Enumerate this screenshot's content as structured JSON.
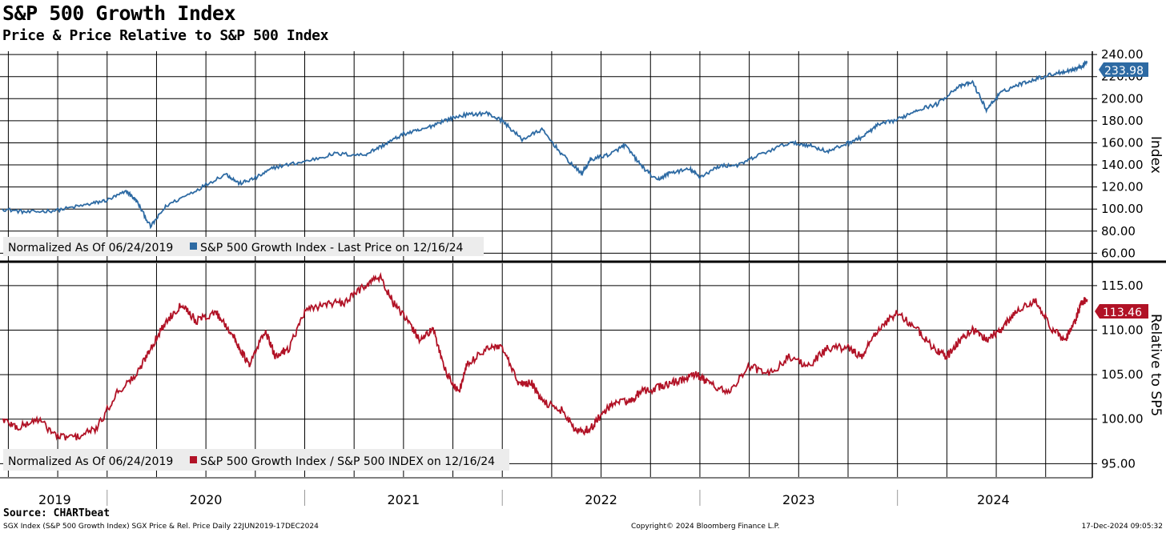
{
  "title": "S&P 500 Growth Index",
  "subtitle": "Price & Price Relative to S&P 500 Index",
  "source": "Source: CHARTbeat",
  "footer": {
    "left": "SGX Index (S&P 500 Growth Index) SGX Price & Rel. Price  Daily 22JUN2019-17DEC2024",
    "middle": "Copyright© 2024 Bloomberg Finance L.P.",
    "right": "17-Dec-2024 09:05:32"
  },
  "colors": {
    "price": "#2d6aa3",
    "relative": "#b11226",
    "grid": "#000000"
  },
  "chart_data": [
    {
      "type": "line",
      "name": "price-panel",
      "axis_label": "Index",
      "y_ticks": [
        "60.00",
        "80.00",
        "100.00",
        "120.00",
        "140.00",
        "160.00",
        "180.00",
        "200.00",
        "220.00",
        "240.00"
      ],
      "ylim": [
        53,
        243
      ],
      "x_range": [
        2019.47,
        2024.97
      ],
      "last_value_label": "233.98",
      "legend": {
        "normalized": "Normalized As Of 06/24/2019",
        "series": "S&P 500 Growth Index - Last Price on 12/16/24",
        "placement": "bottom-left"
      },
      "x": [
        2019.47,
        2019.6,
        2019.75,
        2019.9,
        2020.0,
        2020.1,
        2020.15,
        2020.22,
        2020.3,
        2020.45,
        2020.6,
        2020.67,
        2020.75,
        2020.85,
        2021.0,
        2021.15,
        2021.3,
        2021.4,
        2021.5,
        2021.6,
        2021.7,
        2021.8,
        2021.92,
        2022.0,
        2022.1,
        2022.2,
        2022.3,
        2022.4,
        2022.45,
        2022.55,
        2022.62,
        2022.7,
        2022.78,
        2022.85,
        2022.95,
        2023.0,
        2023.1,
        2023.2,
        2023.3,
        2023.45,
        2023.55,
        2023.65,
        2023.75,
        2023.82,
        2023.9,
        2024.0,
        2024.1,
        2024.2,
        2024.3,
        2024.38,
        2024.45,
        2024.52,
        2024.6,
        2024.7,
        2024.8,
        2024.88,
        2024.93,
        2024.96
      ],
      "values": [
        100,
        97,
        99,
        104,
        108,
        116,
        107,
        84,
        103,
        117,
        132,
        123,
        128,
        138,
        143,
        150,
        149,
        158,
        168,
        172,
        180,
        185,
        187,
        180,
        163,
        172,
        150,
        132,
        145,
        150,
        158,
        140,
        126,
        133,
        136,
        129,
        139,
        140,
        149,
        160,
        158,
        152,
        160,
        165,
        176,
        181,
        190,
        195,
        210,
        215,
        190,
        205,
        212,
        218,
        223,
        226,
        229,
        234
      ]
    },
    {
      "type": "line",
      "name": "relative-panel",
      "axis_label": "Relative to SP5",
      "y_ticks": [
        "95.00",
        "100.00",
        "105.00",
        "110.00",
        "115.00"
      ],
      "ylim": [
        93.5,
        117.5
      ],
      "x_range": [
        2019.47,
        2024.97
      ],
      "last_value_label": "113.46",
      "legend": {
        "normalized": "Normalized As Of 06/24/2019",
        "series": "S&P 500 Growth Index / S&P 500 INDEX on 12/16/24",
        "placement": "bottom-left"
      },
      "x_ticks": [
        "2019",
        "2020",
        "2021",
        "2022",
        "2023",
        "2024"
      ],
      "x": [
        2019.47,
        2019.55,
        2019.65,
        2019.75,
        2019.85,
        2019.95,
        2020.05,
        2020.15,
        2020.22,
        2020.3,
        2020.38,
        2020.45,
        2020.55,
        2020.62,
        2020.67,
        2020.72,
        2020.8,
        2020.85,
        2020.92,
        2021.0,
        2021.1,
        2021.2,
        2021.3,
        2021.38,
        2021.45,
        2021.52,
        2021.58,
        2021.65,
        2021.72,
        2021.78,
        2021.82,
        2021.92,
        2022.0,
        2022.08,
        2022.15,
        2022.2,
        2022.3,
        2022.38,
        2022.45,
        2022.5,
        2022.58,
        2022.65,
        2022.7,
        2022.78,
        2022.85,
        2022.92,
        2022.98,
        2023.05,
        2023.15,
        2023.25,
        2023.35,
        2023.45,
        2023.55,
        2023.65,
        2023.75,
        2023.82,
        2023.9,
        2024.0,
        2024.1,
        2024.18,
        2024.25,
        2024.32,
        2024.38,
        2024.45,
        2024.52,
        2024.6,
        2024.7,
        2024.78,
        2024.85,
        2024.9,
        2024.93,
        2024.96
      ],
      "values": [
        100,
        99,
        100,
        98,
        98,
        99,
        103,
        105,
        108,
        111,
        113,
        111,
        112,
        110,
        108,
        106,
        110,
        107,
        108,
        112,
        113,
        113,
        115,
        116,
        113,
        111,
        109,
        110,
        105,
        103,
        106,
        108,
        108,
        104,
        104,
        102,
        101,
        98.5,
        99,
        100.5,
        102,
        102,
        103,
        103.5,
        104,
        104.5,
        105,
        104,
        103,
        106,
        105,
        107,
        106,
        108,
        108,
        107,
        110,
        112,
        110,
        108,
        107,
        109,
        110,
        109,
        110,
        112,
        113.5,
        110,
        109,
        111,
        113,
        113.46
      ]
    }
  ]
}
